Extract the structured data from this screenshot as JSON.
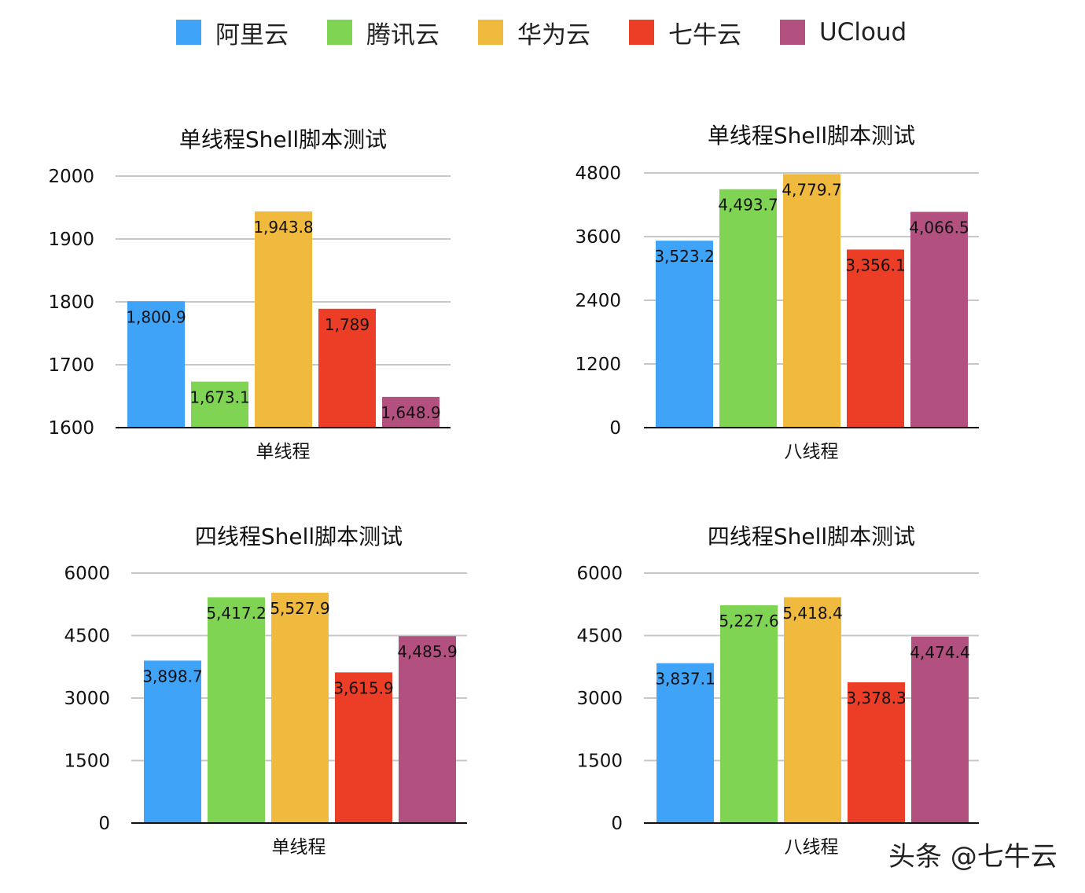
{
  "legend": [
    {
      "label": "阿里云",
      "color": "#3FA3F7"
    },
    {
      "label": "腾讯云",
      "color": "#80D453"
    },
    {
      "label": "华为云",
      "color": "#F0BA3F"
    },
    {
      "label": "七牛云",
      "color": "#EC3D26"
    },
    {
      "label": "UCloud",
      "color": "#B25180"
    }
  ],
  "watermark": "头条 @七牛云",
  "chart_data": [
    {
      "type": "bar",
      "title": "单线程Shell脚本测试",
      "xlabel": "单线程",
      "categories": [
        "阿里云",
        "腾讯云",
        "华为云",
        "七牛云",
        "UCloud"
      ],
      "values": [
        1800.9,
        1673.1,
        1943.8,
        1789,
        1648.9
      ],
      "value_labels": [
        "1,800.9",
        "1,673.1",
        "1,943.8",
        "1,789",
        "1,648.9"
      ],
      "ylim": [
        1600,
        2000
      ],
      "yticks": [
        1600,
        1700,
        1800,
        1900,
        2000
      ],
      "grid": true
    },
    {
      "type": "bar",
      "title": "单线程Shell脚本测试",
      "xlabel": "八线程",
      "categories": [
        "阿里云",
        "腾讯云",
        "华为云",
        "七牛云",
        "UCloud"
      ],
      "values": [
        3523.2,
        4493.7,
        4779.7,
        3356.1,
        4066.5
      ],
      "value_labels": [
        "3,523.2",
        "4,493.7",
        "4,779.7",
        "3,356.1",
        "4,066.5"
      ],
      "ylim": [
        0,
        4800
      ],
      "yticks": [
        0,
        1200,
        2400,
        3600,
        4800
      ],
      "grid": true
    },
    {
      "type": "bar",
      "title": "四线程Shell脚本测试",
      "xlabel": "单线程",
      "categories": [
        "阿里云",
        "腾讯云",
        "华为云",
        "七牛云",
        "UCloud"
      ],
      "values": [
        3898.7,
        5417.2,
        5527.9,
        3615.9,
        4485.9
      ],
      "value_labels": [
        "3,898.7",
        "5,417.2",
        "5,527.9",
        "3,615.9",
        "4,485.9"
      ],
      "ylim": [
        0,
        6000
      ],
      "yticks": [
        0,
        1500,
        3000,
        4500,
        6000
      ],
      "grid": true
    },
    {
      "type": "bar",
      "title": "四线程Shell脚本测试",
      "xlabel": "八线程",
      "categories": [
        "阿里云",
        "腾讯云",
        "华为云",
        "七牛云",
        "UCloud"
      ],
      "values": [
        3837.1,
        5227.6,
        5418.4,
        3378.3,
        4474.4
      ],
      "value_labels": [
        "3,837.1",
        "5,227.6",
        "5,418.4",
        "3,378.3",
        "4,474.4"
      ],
      "ylim": [
        0,
        6000
      ],
      "yticks": [
        0,
        1500,
        3000,
        4500,
        6000
      ],
      "grid": true
    }
  ]
}
